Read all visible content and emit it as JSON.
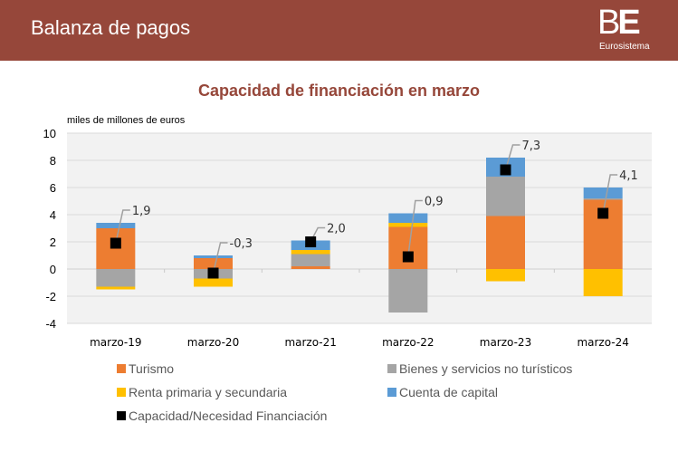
{
  "header": {
    "title": "Balanza de pagos",
    "logo_mark_b": "B",
    "logo_mark_e": "E",
    "logo_sub": "Eurosistema"
  },
  "chart_data": {
    "type": "bar",
    "stacked": true,
    "title": "Capacidad de financiación en marzo",
    "ylabel": "miles de millones de euros",
    "xlabel": "",
    "ylim": [
      -4,
      10
    ],
    "yticks": [
      10,
      8,
      6,
      4,
      2,
      0,
      -2,
      -4
    ],
    "grid": true,
    "legend_position": "bottom",
    "categories": [
      "marzo-19",
      "marzo-20",
      "marzo-21",
      "marzo-22",
      "marzo-23",
      "marzo-24"
    ],
    "series": [
      {
        "name": "Turismo",
        "color": "#ed7d31",
        "values": [
          3.0,
          0.8,
          0.2,
          3.1,
          3.9,
          5.1
        ]
      },
      {
        "name": "Bienes y servicios no turísticos",
        "color": "#a5a5a5",
        "values": [
          -1.3,
          -0.7,
          0.9,
          -3.2,
          2.9,
          0.1
        ]
      },
      {
        "name": "Renta primaria y secundaria",
        "color": "#ffc000",
        "values": [
          -0.2,
          -0.6,
          0.3,
          0.3,
          -0.9,
          -2.0
        ]
      },
      {
        "name": "Cuenta de capital",
        "color": "#5b9bd5",
        "values": [
          0.4,
          0.2,
          0.7,
          0.7,
          1.4,
          0.8
        ]
      }
    ],
    "marker_series": {
      "name": "Capacidad/Necesidad Financiación",
      "color": "#000000",
      "values": [
        1.9,
        -0.3,
        2.0,
        0.9,
        7.3,
        4.1
      ],
      "labels": [
        "1,9",
        "-0,3",
        "2,0",
        "0,9",
        "7,3",
        "4,1"
      ]
    }
  },
  "legend": [
    {
      "label": "Turismo",
      "color": "#ed7d31"
    },
    {
      "label": "Bienes y servicios no turísticos",
      "color": "#a5a5a5"
    },
    {
      "label": "Renta primaria y secundaria",
      "color": "#ffc000"
    },
    {
      "label": "Cuenta de capital",
      "color": "#5b9bd5"
    },
    {
      "label": "Capacidad/Necesidad Financiación",
      "color": "#000000"
    }
  ]
}
